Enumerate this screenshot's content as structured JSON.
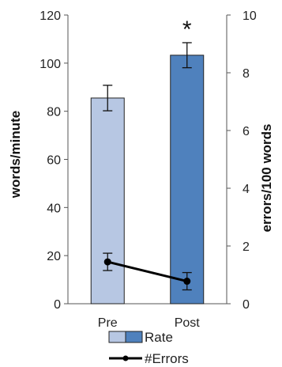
{
  "chart_data": {
    "type": "bar+line",
    "categories": [
      "Pre",
      "Post"
    ],
    "left_axis": {
      "label": "words/minute",
      "range": [
        0,
        120
      ],
      "ticks": [
        0,
        20,
        40,
        60,
        80,
        100,
        120
      ]
    },
    "right_axis": {
      "label": "errors/100 words",
      "range": [
        0,
        10
      ],
      "ticks": [
        0,
        2,
        4,
        6,
        8,
        10
      ]
    },
    "series": [
      {
        "name": "Rate",
        "kind": "bar",
        "axis": "left",
        "values": [
          85.5,
          103.3
        ],
        "error": [
          5.3,
          5.2
        ],
        "colors": [
          "#b7c7e3",
          "#4f81bd"
        ]
      },
      {
        "name": "#Errors",
        "kind": "line",
        "axis": "right",
        "values": [
          1.45,
          0.78
        ],
        "error": [
          0.3,
          0.3
        ],
        "color": "#000000"
      }
    ],
    "annotations": [
      {
        "category": "Post",
        "text": "*"
      }
    ],
    "grid": false,
    "legend": "bottom"
  }
}
